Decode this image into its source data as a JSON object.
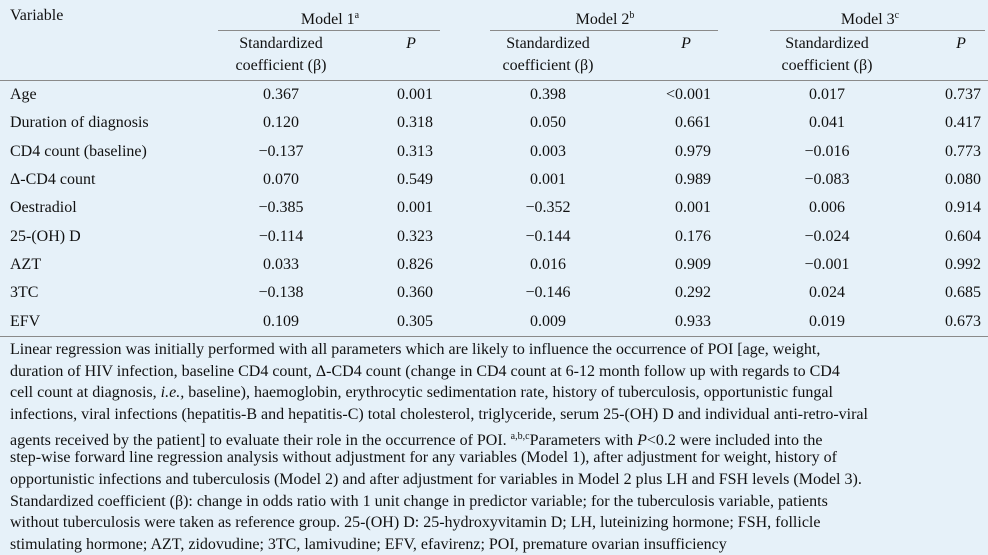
{
  "table": {
    "header": {
      "variable": "Variable",
      "models": [
        {
          "name": "Model 1",
          "sup": "a",
          "beta": [
            "Standardized",
            "coefficient (β)"
          ],
          "p": "P"
        },
        {
          "name": "Model 2",
          "sup": "b",
          "beta": [
            "Standardized",
            "coefficient (β)"
          ],
          "p": "P"
        },
        {
          "name": "Model 3",
          "sup": "c",
          "beta": [
            "Standardized",
            "coefficient (β)"
          ],
          "p": "P"
        }
      ]
    },
    "rows": [
      [
        "Age",
        "0.367",
        "0.001",
        "0.398",
        "<0.001",
        "0.017",
        "0.737"
      ],
      [
        "Duration of diagnosis",
        "0.120",
        "0.318",
        "0.050",
        "0.661",
        "0.041",
        "0.417"
      ],
      [
        "CD4 count (baseline)",
        "−0.137",
        "0.313",
        "0.003",
        "0.979",
        "−0.016",
        "0.773"
      ],
      [
        "Δ-CD4 count",
        "0.070",
        "0.549",
        "0.001",
        "0.989",
        "−0.083",
        "0.080"
      ],
      [
        "Oestradiol",
        "−0.385",
        "0.001",
        "−0.352",
        "0.001",
        "0.006",
        "0.914"
      ],
      [
        "25-(OH) D",
        "−0.114",
        "0.323",
        "−0.144",
        "0.176",
        "−0.024",
        "0.604"
      ],
      [
        "AZT",
        "0.033",
        "0.826",
        "0.016",
        "0.909",
        "−0.001",
        "0.992"
      ],
      [
        "3TC",
        "−0.138",
        "0.360",
        "−0.146",
        "0.292",
        "0.024",
        "0.685"
      ],
      [
        "EFV",
        "0.109",
        "0.305",
        "0.009",
        "0.933",
        "0.019",
        "0.673"
      ]
    ],
    "footnote": [
      [
        {
          "text": "Linear regression was initially performed with all parameters which are likely to influence the occurrence of POI [age, weight,"
        }
      ],
      [
        {
          "text": "duration of HIV infection, baseline CD4 count, Δ-CD4 count (change in CD4 count at 6-12 month follow up with regards to CD4"
        }
      ],
      [
        {
          "text": "cell count at diagnosis, "
        },
        {
          "text": "i.e.,",
          "italic": true
        },
        {
          "text": " baseline), haemoglobin, erythrocytic sedimentation rate, history of tuberculosis, opportunistic fungal"
        }
      ],
      [
        {
          "text": "infections, viral infections (hepatitis-B and hepatitis-C) total cholesterol, triglyceride, serum 25-(OH) D and individual anti-retro-viral"
        }
      ],
      [
        {
          "text": "agents received by the patient] to evaluate their role in the occurrence of POI. "
        },
        {
          "text": "a,b,c",
          "sup": true
        },
        {
          "text": "Parameters with "
        },
        {
          "text": "P",
          "italic": true
        },
        {
          "text": "<0.2 were included into the"
        }
      ],
      [
        {
          "text": "step-wise forward line regression analysis without adjustment for any variables (Model 1), after adjustment for weight, history of"
        }
      ],
      [
        {
          "text": "opportunistic infections and tuberculosis (Model 2) and after adjustment for variables in Model 2 plus LH and FSH levels (Model 3)."
        }
      ],
      [
        {
          "text": "Standardized coefficient (β): change in odds ratio with 1 unit change in predictor variable; for the tuberculosis variable, patients"
        }
      ],
      [
        {
          "text": "without tuberculosis were taken as reference group. 25-(OH) D: 25-hydroxyvitamin D; LH, luteinizing hormone; FSH, follicle"
        }
      ],
      [
        {
          "text": "stimulating hormone; AZT, zidovudine; 3TC, lamivudine; EFV, efavirenz; POI, premature ovarian insufficiency"
        }
      ]
    ]
  }
}
